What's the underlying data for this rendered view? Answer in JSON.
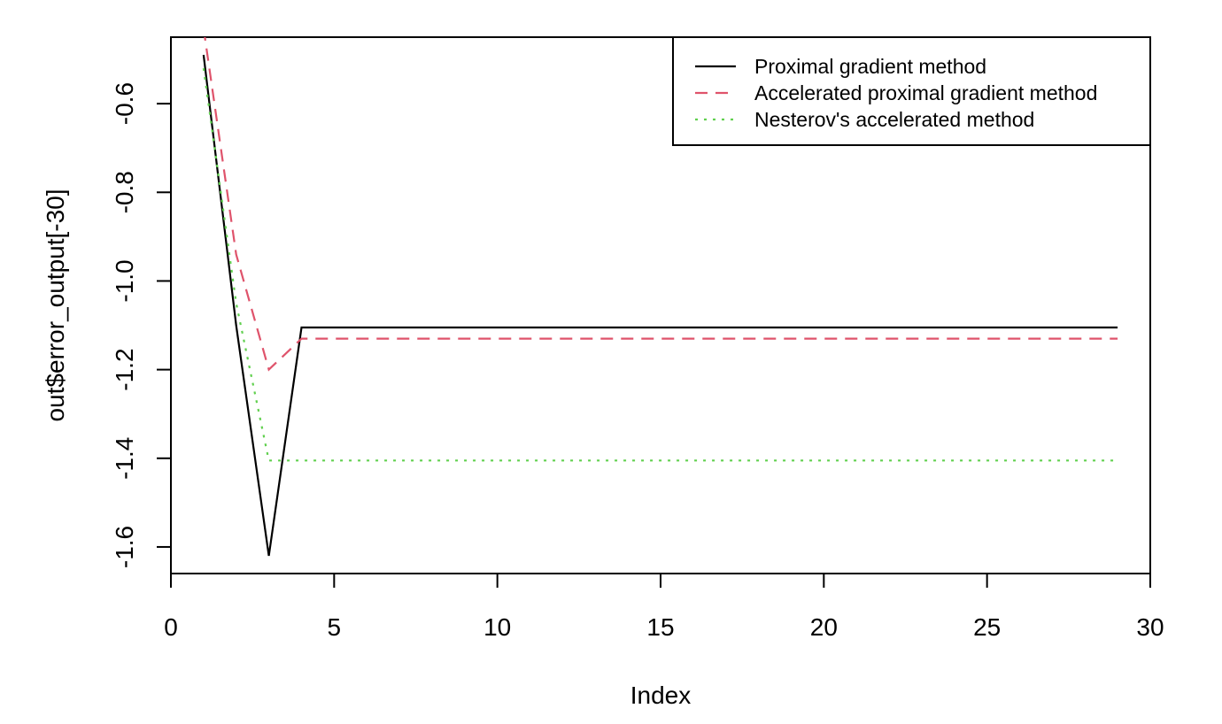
{
  "chart_data": {
    "type": "line",
    "xlabel": "Index",
    "ylabel": "out$error_output[-30]",
    "xlim": [
      0,
      30
    ],
    "ylim": [
      -1.66,
      -0.45
    ],
    "x_ticks": [
      0,
      5,
      10,
      15,
      20,
      25,
      30
    ],
    "y_ticks": [
      -1.6,
      -1.4,
      -1.2,
      -1.0,
      -0.8,
      -0.6
    ],
    "x_tick_labels": [
      "0",
      "5",
      "10",
      "15",
      "20",
      "25",
      "30"
    ],
    "y_tick_labels": [
      "-1.6",
      "-1.4",
      "-1.2",
      "-1.0",
      "-0.8",
      "-0.6"
    ],
    "grid": false,
    "legend_position": "top-right",
    "x": [
      1,
      2,
      3,
      4,
      5,
      6,
      7,
      8,
      9,
      10,
      11,
      12,
      13,
      14,
      15,
      16,
      17,
      18,
      19,
      20,
      21,
      22,
      23,
      24,
      25,
      26,
      27,
      28,
      29
    ],
    "series": [
      {
        "name": "Proximal gradient method",
        "color": "#000000",
        "dash": "solid",
        "values": [
          -0.49,
          -1.1,
          -1.62,
          -1.105,
          -1.105,
          -1.105,
          -1.105,
          -1.105,
          -1.105,
          -1.105,
          -1.105,
          -1.105,
          -1.105,
          -1.105,
          -1.105,
          -1.105,
          -1.105,
          -1.105,
          -1.105,
          -1.105,
          -1.105,
          -1.105,
          -1.105,
          -1.105,
          -1.105,
          -1.105,
          -1.105,
          -1.105,
          -1.105
        ]
      },
      {
        "name": "Accelerated proximal gradient method",
        "color": "#DF536B",
        "dash": "dashed",
        "values": [
          -0.43,
          -0.94,
          -1.2,
          -1.13,
          -1.13,
          -1.13,
          -1.13,
          -1.13,
          -1.13,
          -1.13,
          -1.13,
          -1.13,
          -1.13,
          -1.13,
          -1.13,
          -1.13,
          -1.13,
          -1.13,
          -1.13,
          -1.13,
          -1.13,
          -1.13,
          -1.13,
          -1.13,
          -1.13,
          -1.13,
          -1.13,
          -1.13,
          -1.13
        ]
      },
      {
        "name": "Nesterov's accelerated method",
        "color": "#61D04F",
        "dash": "dotted",
        "values": [
          -0.52,
          -1.05,
          -1.405,
          -1.405,
          -1.405,
          -1.405,
          -1.405,
          -1.405,
          -1.405,
          -1.405,
          -1.405,
          -1.405,
          -1.405,
          -1.405,
          -1.405,
          -1.405,
          -1.405,
          -1.405,
          -1.405,
          -1.405,
          -1.405,
          -1.405,
          -1.405,
          -1.405,
          -1.405,
          -1.405,
          -1.405,
          -1.405,
          -1.405
        ]
      }
    ]
  }
}
